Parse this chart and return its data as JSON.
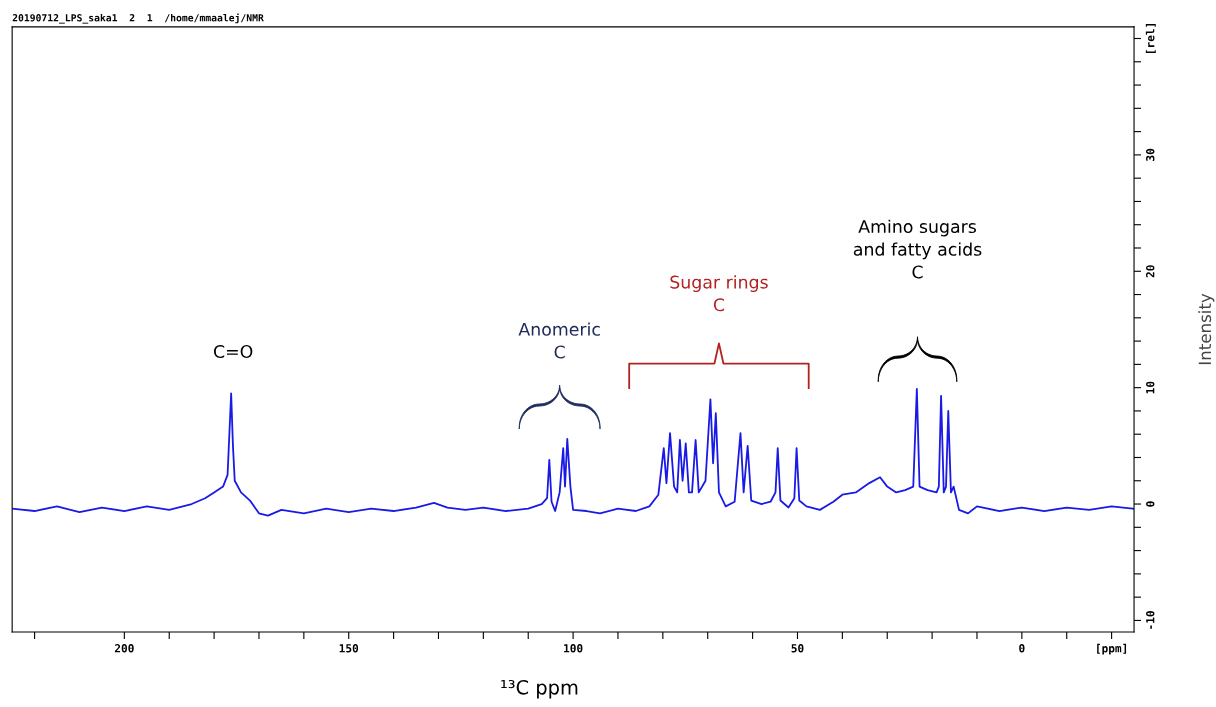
{
  "chart_data": {
    "type": "line",
    "title": "20190712_LPS_saka1  2  1  /home/mmaalej/NMR",
    "xlabel": "¹³C ppm",
    "ylabel": "Intensity",
    "x": [
      225,
      220,
      215,
      210,
      205,
      200,
      195,
      190,
      185,
      182,
      180,
      178,
      177,
      176.6,
      176.2,
      175.8,
      175.4,
      174,
      172,
      170,
      168,
      165,
      160,
      155,
      150,
      145,
      140,
      135,
      131,
      128,
      124,
      120,
      115,
      110,
      107,
      105.8,
      105.3,
      104.8,
      104,
      103,
      102.2,
      101.8,
      101.3,
      100.6,
      100,
      97,
      94,
      90,
      86,
      83,
      81,
      79.8,
      79.2,
      78.4,
      77.5,
      76.8,
      76.2,
      75.6,
      74.9,
      74.2,
      73.5,
      72.7,
      72,
      70.5,
      69.4,
      68.8,
      68.2,
      67.5,
      66,
      64,
      62.7,
      62,
      61.1,
      60.3,
      58,
      56,
      54.9,
      54.4,
      53.8,
      52,
      50.7,
      50.2,
      49.6,
      48,
      45,
      42,
      40,
      37,
      34,
      31.6,
      30,
      28,
      26,
      24.2,
      23.4,
      22.8,
      21,
      19,
      18.5,
      18.0,
      17.4,
      16.9,
      16.4,
      15.8,
      15.2,
      14,
      12,
      10,
      5,
      0,
      -5,
      -10,
      -15,
      -20,
      -25
    ],
    "series": [
      {
        "color": "#1a1ae6",
        "values": [
          -0.4,
          -0.6,
          -0.2,
          -0.7,
          -0.3,
          -0.6,
          -0.2,
          -0.5,
          0.0,
          0.5,
          1.0,
          1.5,
          2.5,
          6,
          9.5,
          5,
          2.0,
          1.0,
          0.3,
          -0.8,
          -1.0,
          -0.5,
          -0.8,
          -0.4,
          -0.7,
          -0.4,
          -0.6,
          -0.3,
          0.1,
          -0.3,
          -0.5,
          -0.3,
          -0.6,
          -0.4,
          0.0,
          0.5,
          3.8,
          0.2,
          -0.6,
          1.0,
          4.8,
          1.5,
          5.6,
          1.5,
          -0.5,
          -0.6,
          -0.8,
          -0.4,
          -0.6,
          -0.2,
          0.8,
          4.8,
          1.8,
          6.1,
          1.5,
          1.0,
          5.5,
          2.0,
          5.2,
          1.0,
          1.0,
          5.5,
          1.0,
          2.0,
          9.0,
          3.5,
          7.8,
          1.0,
          -0.2,
          0.2,
          6.1,
          1.0,
          5.0,
          0.3,
          0.0,
          0.2,
          1.0,
          4.8,
          0.3,
          -0.3,
          0.5,
          4.8,
          0.3,
          -0.2,
          -0.5,
          0.2,
          0.8,
          1.0,
          1.8,
          2.3,
          1.5,
          1.0,
          1.2,
          1.5,
          9.9,
          1.5,
          1.2,
          1.0,
          1.5,
          9.3,
          1.0,
          1.5,
          8.0,
          1.0,
          1.5,
          -0.5,
          -0.8,
          -0.2,
          -0.6,
          -0.3,
          -0.6,
          -0.3,
          -0.5,
          -0.2,
          -0.4
        ]
      }
    ],
    "xlim": [
      225,
      -25
    ],
    "xticks": [
      {
        "value": 220,
        "label": null
      },
      200,
      {
        "value": 190,
        "label": null
      },
      {
        "value": 180,
        "label": null
      },
      {
        "value": 170,
        "label": null
      },
      {
        "value": 160,
        "label": null
      },
      150,
      {
        "value": 140,
        "label": null
      },
      {
        "value": 130,
        "label": null
      },
      {
        "value": 120,
        "label": null
      },
      {
        "value": 110,
        "label": null
      },
      100,
      {
        "value": 90,
        "label": null
      },
      {
        "value": 80,
        "label": null
      },
      {
        "value": 70,
        "label": null
      },
      {
        "value": 60,
        "label": null
      },
      50,
      {
        "value": 40,
        "label": null
      },
      {
        "value": 30,
        "label": null
      },
      {
        "value": 20,
        "label": null
      },
      {
        "value": 10,
        "label": null
      },
      0,
      {
        "value": -10,
        "label": null
      },
      {
        "value": -20,
        "label": "[ppm]"
      }
    ],
    "ylim": [
      -11,
      41
    ],
    "yticks": [
      -10,
      {
        "value": -8,
        "label": null
      },
      {
        "value": -6,
        "label": null
      },
      {
        "value": -4,
        "label": null
      },
      {
        "value": -2,
        "label": null
      },
      0,
      {
        "value": 2,
        "label": null
      },
      {
        "value": 4,
        "label": null
      },
      {
        "value": 6,
        "label": null
      },
      {
        "value": 8,
        "label": null
      },
      10,
      {
        "value": 12,
        "label": null
      },
      {
        "value": 14,
        "label": null
      },
      {
        "value": 16,
        "label": null
      },
      {
        "value": 18,
        "label": null
      },
      20,
      {
        "value": 22,
        "label": null
      },
      {
        "value": 24,
        "label": null
      },
      {
        "value": 26,
        "label": null
      },
      {
        "value": 28,
        "label": null
      },
      30,
      {
        "value": 32,
        "label": null
      },
      {
        "value": 34,
        "label": null
      },
      {
        "value": 36,
        "label": null
      },
      {
        "value": 38,
        "label": null
      },
      {
        "value": 40,
        "label": "[rel]"
      }
    ],
    "grid": false,
    "legend": false,
    "marker": "none",
    "line_style": "solid",
    "annotations": [
      "C=O",
      "Anomeric\nC",
      "Sugar rings\nC",
      "Amino sugars\nand fatty acids\nC"
    ]
  }
}
